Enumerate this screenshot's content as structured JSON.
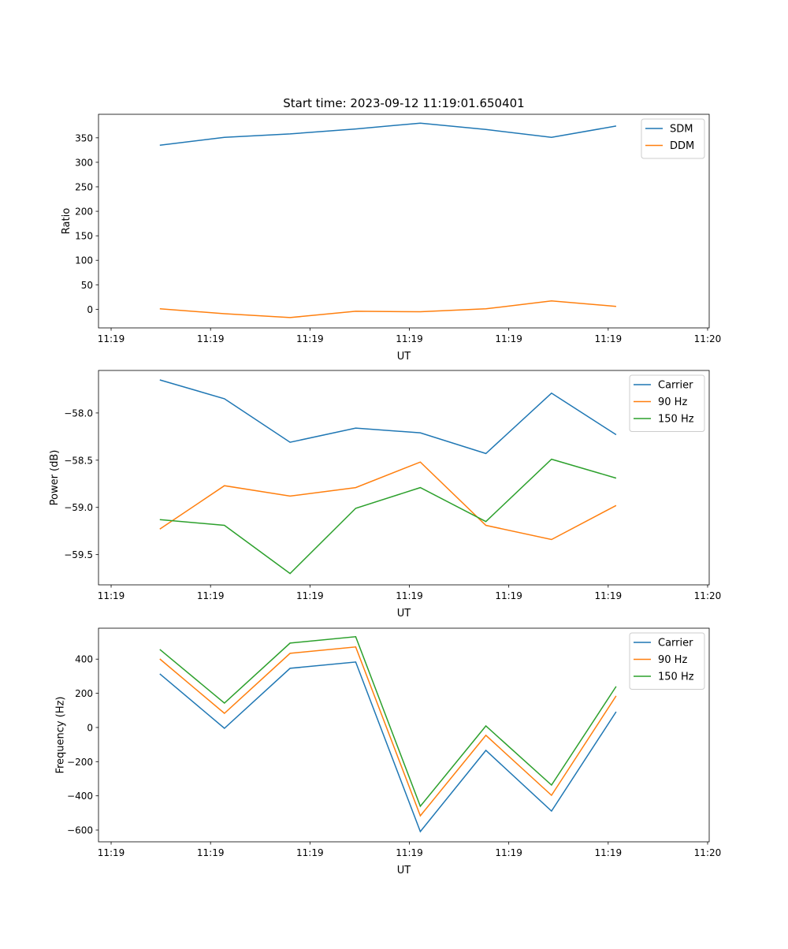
{
  "title": "Start time: 2023-09-12 11:19:01.650401",
  "colors": {
    "blue": "#1f77b4",
    "orange": "#ff7f0e",
    "green": "#2ca02c"
  },
  "chart_data": [
    {
      "type": "line",
      "title": "Start time: 2023-09-12 11:19:01.650401",
      "xlabel": "UT",
      "ylabel": "Ratio",
      "x": [
        0.49,
        1.14,
        1.8,
        2.46,
        3.11,
        3.77,
        4.43,
        5.08
      ],
      "xticks": [
        0,
        1,
        2,
        3,
        4,
        5,
        6
      ],
      "xtick_labels": [
        "11:19",
        "11:19",
        "11:19",
        "11:19",
        "11:19",
        "11:19",
        "11:20"
      ],
      "xlim": [
        -0.127,
        6.016
      ],
      "ylim": [
        -38,
        398
      ],
      "yticks": [
        0,
        50,
        100,
        150,
        200,
        250,
        300,
        350
      ],
      "ytick_labels": [
        "0",
        "50",
        "100",
        "150",
        "200",
        "250",
        "300",
        "350"
      ],
      "legend": "top-right",
      "series": [
        {
          "name": "SDM",
          "color": "#1f77b4",
          "values": [
            335,
            351,
            358,
            368,
            380,
            367,
            351,
            374
          ]
        },
        {
          "name": "DDM",
          "color": "#ff7f0e",
          "values": [
            1,
            -9,
            -17,
            -4,
            -5,
            1,
            17,
            6
          ]
        }
      ]
    },
    {
      "type": "line",
      "xlabel": "UT",
      "ylabel": "Power (dB)",
      "x": [
        0.49,
        1.14,
        1.8,
        2.46,
        3.11,
        3.77,
        4.43,
        5.08
      ],
      "xticks": [
        0,
        1,
        2,
        3,
        4,
        5,
        6
      ],
      "xtick_labels": [
        "11:19",
        "11:19",
        "11:19",
        "11:19",
        "11:19",
        "11:19",
        "11:20"
      ],
      "xlim": [
        -0.127,
        6.016
      ],
      "ylim": [
        -59.82,
        -57.55
      ],
      "yticks": [
        -59.5,
        -59.0,
        -58.5,
        -58.0
      ],
      "ytick_labels": [
        "−59.5",
        "−59.0",
        "−58.5",
        "−58.0"
      ],
      "legend": "top-right",
      "series": [
        {
          "name": "Carrier",
          "color": "#1f77b4",
          "values": [
            -57.65,
            -57.85,
            -58.31,
            -58.16,
            -58.21,
            -58.43,
            -57.79,
            -58.23
          ]
        },
        {
          "name": "90 Hz",
          "color": "#ff7f0e",
          "values": [
            -59.23,
            -58.77,
            -58.88,
            -58.79,
            -58.52,
            -59.19,
            -59.34,
            -58.98
          ]
        },
        {
          "name": "150 Hz",
          "color": "#2ca02c",
          "values": [
            -59.13,
            -59.19,
            -59.7,
            -59.01,
            -58.79,
            -59.15,
            -58.49,
            -58.69
          ]
        }
      ]
    },
    {
      "type": "line",
      "xlabel": "UT",
      "ylabel": "Frequency (Hz)",
      "x": [
        0.49,
        1.14,
        1.8,
        2.46,
        3.11,
        3.77,
        4.43,
        5.08
      ],
      "xticks": [
        0,
        1,
        2,
        3,
        4,
        5,
        6
      ],
      "xtick_labels": [
        "11:19",
        "11:19",
        "11:19",
        "11:19",
        "11:19",
        "11:19",
        "11:20"
      ],
      "xlim": [
        -0.127,
        6.016
      ],
      "ylim": [
        -669,
        581
      ],
      "yticks": [
        -600,
        -400,
        -200,
        0,
        200,
        400
      ],
      "ytick_labels": [
        "−600",
        "−400",
        "−200",
        "0",
        "200",
        "400"
      ],
      "legend": "top-right",
      "series": [
        {
          "name": "Carrier",
          "color": "#1f77b4",
          "values": [
            314,
            -5,
            346,
            383,
            -609,
            -134,
            -489,
            92
          ]
        },
        {
          "name": "90 Hz",
          "color": "#ff7f0e",
          "values": [
            401,
            83,
            434,
            471,
            -517,
            -46,
            -397,
            185
          ]
        },
        {
          "name": "150 Hz",
          "color": "#2ca02c",
          "values": [
            457,
            143,
            494,
            531,
            -461,
            9,
            -337,
            240
          ]
        }
      ]
    }
  ]
}
